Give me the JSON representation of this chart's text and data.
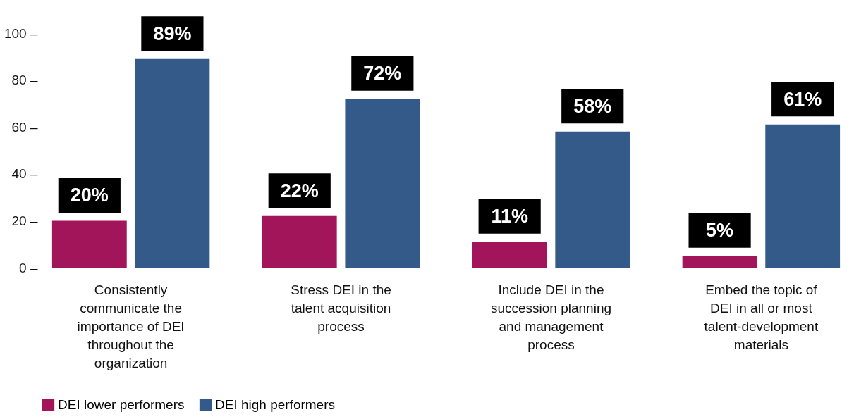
{
  "chart_data": {
    "type": "bar",
    "categories": [
      "Consistently communicate the importance of DEI throughout the organization",
      "Stress DEI in the talent acquisition process",
      "Include DEI in the succession planning and management process",
      "Embed the topic of DEI in all or most talent-development materials"
    ],
    "series": [
      {
        "name": "DEI lower performers",
        "color": "#a3155a",
        "values": [
          20,
          22,
          11,
          5
        ],
        "value_labels": [
          "20%",
          "22%",
          "11%",
          "5%"
        ]
      },
      {
        "name": "DEI high performers",
        "color": "#345a8a",
        "values": [
          89,
          72,
          58,
          61
        ],
        "value_labels": [
          "89%",
          "72%",
          "58%",
          "61%"
        ]
      }
    ],
    "ylim": [
      0,
      100
    ],
    "yticks": [
      {
        "value": 0,
        "label": "0 –"
      },
      {
        "value": 20,
        "label": "20 –"
      },
      {
        "value": 40,
        "label": "40 –"
      },
      {
        "value": 60,
        "label": "60 –"
      },
      {
        "value": 80,
        "label": "80 –"
      },
      {
        "value": 100,
        "label": "100 –"
      }
    ],
    "grid": false,
    "legend": "bottom"
  }
}
